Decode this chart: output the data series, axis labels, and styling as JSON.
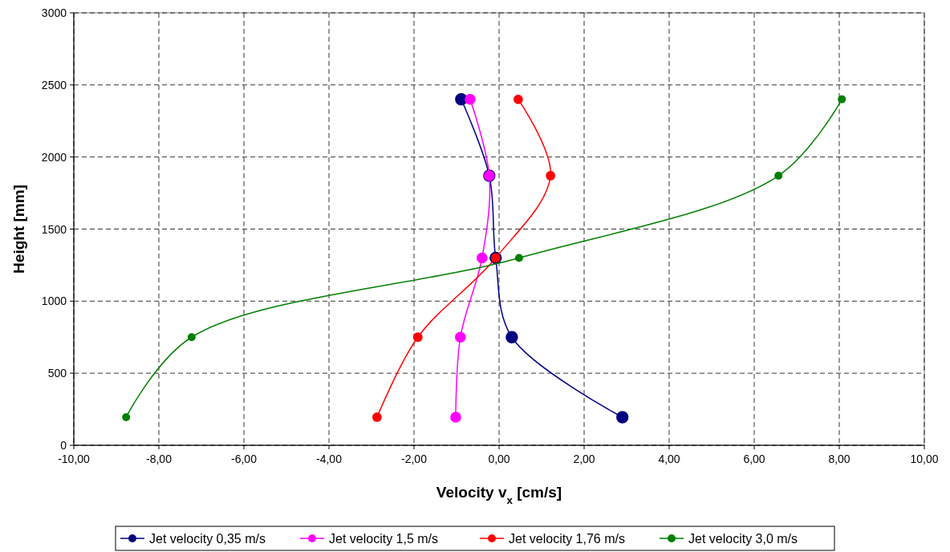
{
  "chart_data": {
    "type": "line",
    "xlabel": "Velocity v$_{x}$ [cm/s]",
    "ylabel": "Height [mm]",
    "xlim": [
      -10,
      10
    ],
    "ylim": [
      0,
      3000
    ],
    "xticks": [
      {
        "value": -10,
        "label": "-10,00"
      },
      {
        "value": -8,
        "label": "-8,00"
      },
      {
        "value": -6,
        "label": "-6,00"
      },
      {
        "value": -4,
        "label": "-4,00"
      },
      {
        "value": -2,
        "label": "-2,00"
      },
      {
        "value": 0,
        "label": "0,00"
      },
      {
        "value": 2,
        "label": "2,00"
      },
      {
        "value": 4,
        "label": "4,00"
      },
      {
        "value": 6,
        "label": "6,00"
      },
      {
        "value": 8,
        "label": "8,00"
      },
      {
        "value": 10,
        "label": "10,00"
      }
    ],
    "yticks": [
      0,
      500,
      1000,
      1500,
      2000,
      2500,
      3000
    ],
    "grid": true,
    "legend": "bottom",
    "marker": "circle",
    "line_style": "solid",
    "series": [
      {
        "name": "Jet velocity 0,35 m/s",
        "color": "#000080",
        "x": [
          -0.89,
          -0.23,
          -0.08,
          0.3,
          2.9
        ],
        "values": [
          2400,
          1870,
          1300,
          750,
          195
        ]
      },
      {
        "name": "Jet velocity 1,5 m/s",
        "color": "#ff00ff",
        "x": [
          -0.68,
          -0.23,
          -0.4,
          -0.91,
          -1.02
        ],
        "values": [
          2400,
          1870,
          1300,
          750,
          195
        ]
      },
      {
        "name": "Jet velocity 1,76 m/s",
        "color": "#ff0000",
        "x": [
          0.45,
          1.21,
          -0.08,
          -1.91,
          -2.87
        ],
        "values": [
          2400,
          1870,
          1300,
          750,
          195
        ]
      },
      {
        "name": "Jet velocity 3,0 m/s",
        "color": "#008000",
        "x": [
          8.06,
          6.57,
          0.47,
          -7.23,
          -8.77
        ],
        "values": [
          2400,
          1870,
          1300,
          750,
          195
        ]
      }
    ]
  }
}
